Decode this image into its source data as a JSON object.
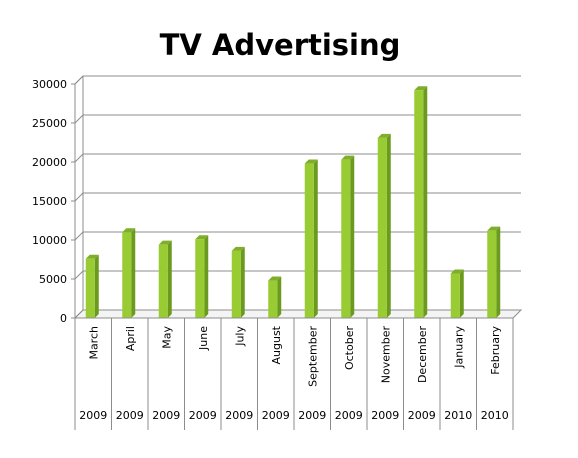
{
  "chart_data": {
    "type": "bar",
    "title": "TV Advertising",
    "categories": [
      "March",
      "April",
      "May",
      "June",
      "July",
      "August",
      "September",
      "October",
      "November",
      "December",
      "January",
      "February"
    ],
    "category_years": [
      "2009",
      "2009",
      "2009",
      "2009",
      "2009",
      "2009",
      "2009",
      "2009",
      "2009",
      "2009",
      "2010",
      "2010"
    ],
    "values": [
      7600,
      11000,
      9400,
      10100,
      8600,
      4800,
      19800,
      20300,
      23100,
      29200,
      5700,
      11200
    ],
    "y_ticks": [
      "0",
      "5000",
      "10000",
      "15000",
      "20000",
      "25000",
      "30000"
    ],
    "ylim": [
      0,
      30000
    ],
    "grid": true,
    "bar_color": "#99cc33",
    "bar_dark_color": "#6b9a1e"
  }
}
